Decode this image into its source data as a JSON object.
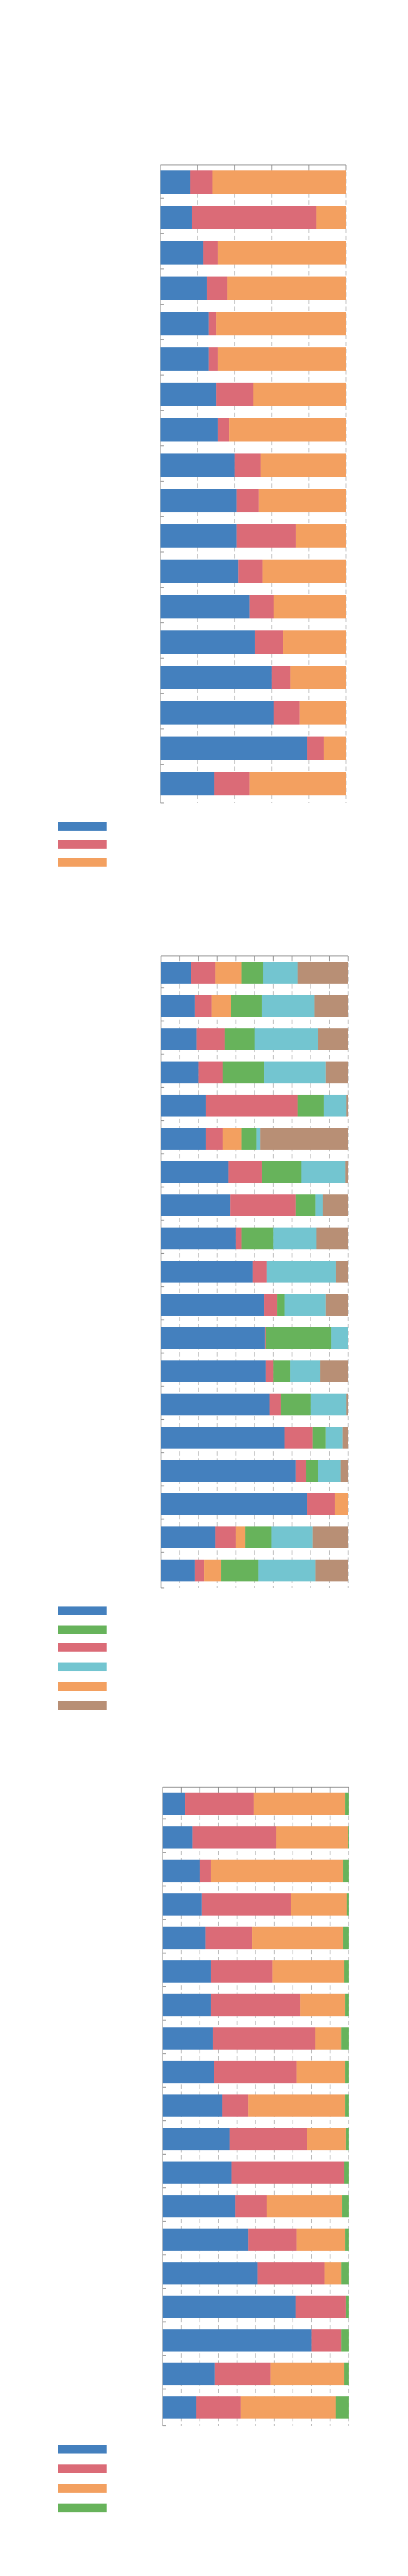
{
  "chart_data": [
    {
      "type": "bar",
      "orientation": "horizontal",
      "stacked": "percent",
      "title": "",
      "xlabel": "",
      "ylabel": "",
      "xlim": [
        0,
        1
      ],
      "x_ticks": [
        0,
        0.2,
        0.4,
        0.6,
        0.8,
        1.0
      ],
      "grid": true,
      "legend_position": "bottom-left",
      "legend_order": [
        0,
        1,
        2
      ],
      "series": [
        {
          "color": "#4480be",
          "values": [
            0.16,
            0.17,
            0.23,
            0.25,
            0.26,
            0.26,
            0.3,
            0.31,
            0.4,
            0.41,
            0.41,
            0.42,
            0.48,
            0.51,
            0.6,
            0.61,
            0.79,
            0.29
          ]
        },
        {
          "color": "#db6b77",
          "values": [
            0.12,
            0.67,
            0.08,
            0.11,
            0.04,
            0.05,
            0.2,
            0.06,
            0.14,
            0.12,
            0.32,
            0.13,
            0.13,
            0.15,
            0.1,
            0.14,
            0.09,
            0.19
          ]
        },
        {
          "color": "#f3a060",
          "values": [
            0.72,
            0.16,
            0.69,
            0.64,
            0.7,
            0.69,
            0.5,
            0.63,
            0.46,
            0.47,
            0.27,
            0.45,
            0.39,
            0.34,
            0.3,
            0.25,
            0.12,
            0.52
          ]
        }
      ]
    },
    {
      "type": "bar",
      "orientation": "horizontal",
      "stacked": "percent",
      "title": "",
      "xlabel": "",
      "ylabel": "",
      "xlim": [
        0,
        1
      ],
      "x_ticks": [
        0,
        0.1,
        0.2,
        0.3,
        0.4,
        0.5,
        0.6,
        0.7,
        0.8,
        0.9,
        1.0
      ],
      "grid": true,
      "legend_position": "bottom-left",
      "legend_order": [
        0,
        3,
        1,
        4,
        2,
        5
      ],
      "series": [
        {
          "color": "#4480be",
          "values": [
            0.16,
            0.18,
            0.19,
            0.2,
            0.24,
            0.24,
            0.36,
            0.37,
            0.4,
            0.49,
            0.55,
            0.555,
            0.56,
            0.58,
            0.66,
            0.72,
            0.78,
            0.29,
            0.18
          ]
        },
        {
          "color": "#db6b77",
          "values": [
            0.13,
            0.09,
            0.15,
            0.13,
            0.49,
            0.09,
            0.18,
            0.35,
            0.03,
            0.075,
            0.07,
            0.005,
            0.04,
            0.06,
            0.15,
            0.055,
            0.15,
            0.11,
            0.05
          ]
        },
        {
          "color": "#f3a060",
          "values": [
            0.14,
            0.105,
            0,
            0,
            0,
            0.1,
            0,
            0,
            0,
            0,
            0,
            0,
            0,
            0,
            0,
            0,
            0.07,
            0.05,
            0.09
          ]
        },
        {
          "color": "#67b35b",
          "values": [
            0.115,
            0.165,
            0.16,
            0.22,
            0.14,
            0.08,
            0.21,
            0.105,
            0.17,
            0,
            0.04,
            0.35,
            0.09,
            0.16,
            0.07,
            0.065,
            0,
            0.14,
            0.2
          ]
        },
        {
          "color": "#73c5d0",
          "values": [
            0.185,
            0.28,
            0.34,
            0.33,
            0.12,
            0.02,
            0.235,
            0.04,
            0.23,
            0.37,
            0.22,
            0.09,
            0.16,
            0.19,
            0.09,
            0.12,
            0,
            0.22,
            0.305
          ]
        },
        {
          "color": "#b88f75",
          "values": [
            0.27,
            0.18,
            0.16,
            0.12,
            0.01,
            0.47,
            0.015,
            0.135,
            0.17,
            0.065,
            0.12,
            0,
            0.15,
            0.01,
            0.03,
            0.04,
            0,
            0.19,
            0.175
          ]
        }
      ]
    },
    {
      "type": "bar",
      "orientation": "horizontal",
      "stacked": "percent",
      "title": "",
      "xlabel": "",
      "ylabel": "",
      "xlim": [
        0,
        1
      ],
      "x_ticks": [
        0,
        0.1,
        0.2,
        0.3,
        0.4,
        0.5,
        0.6,
        0.7,
        0.8,
        0.9,
        1.0
      ],
      "grid": true,
      "legend_position": "bottom-left",
      "legend_order": [
        0,
        1,
        2,
        3
      ],
      "series": [
        {
          "color": "#4480be",
          "values": [
            0.12,
            0.16,
            0.2,
            0.21,
            0.23,
            0.26,
            0.26,
            0.27,
            0.275,
            0.32,
            0.36,
            0.37,
            0.39,
            0.46,
            0.51,
            0.715,
            0.8,
            0.28,
            0.18
          ]
        },
        {
          "color": "#db6b77",
          "values": [
            0.37,
            0.45,
            0.06,
            0.48,
            0.25,
            0.33,
            0.48,
            0.55,
            0.445,
            0.14,
            0.415,
            0.605,
            0.17,
            0.26,
            0.36,
            0.27,
            0.16,
            0.3,
            0.24
          ]
        },
        {
          "color": "#f3a060",
          "values": [
            0.49,
            0.387,
            0.71,
            0.3,
            0.49,
            0.385,
            0.24,
            0.14,
            0.26,
            0.52,
            0.21,
            0,
            0.405,
            0.26,
            0.09,
            0,
            0,
            0.395,
            0.51
          ]
        },
        {
          "color": "#67b35b",
          "values": [
            0.02,
            0.003,
            0.03,
            0.01,
            0.03,
            0.025,
            0.02,
            0.04,
            0.02,
            0.02,
            0.015,
            0.025,
            0.035,
            0.02,
            0.04,
            0.015,
            0.04,
            0.025,
            0.07
          ]
        }
      ]
    }
  ]
}
